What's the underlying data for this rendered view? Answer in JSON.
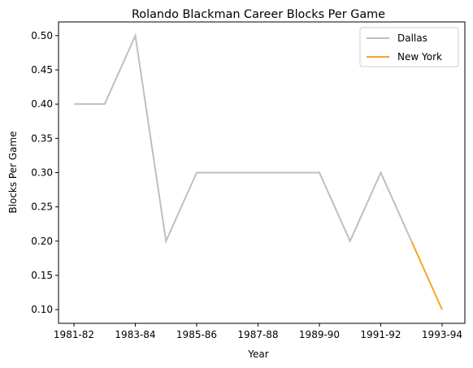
{
  "chart_data": {
    "type": "line",
    "title": "Rolando Blackman Career Blocks Per Game",
    "xlabel": "Year",
    "ylabel": "Blocks Per Game",
    "x": [
      "1981-82",
      "1982-83",
      "1983-84",
      "1984-85",
      "1985-86",
      "1986-87",
      "1987-88",
      "1988-89",
      "1989-90",
      "1990-91",
      "1991-92",
      "1992-93",
      "1993-94"
    ],
    "x_tick_labels": [
      "1981-82",
      "1983-84",
      "1985-86",
      "1987-88",
      "1989-90",
      "1991-92",
      "1993-94"
    ],
    "ylim": [
      0.08,
      0.52
    ],
    "y_ticks": [
      0.1,
      0.15,
      0.2,
      0.25,
      0.3,
      0.35,
      0.4,
      0.45,
      0.5
    ],
    "grid": false,
    "legend_position": "top-right",
    "series": [
      {
        "name": "Dallas",
        "color": "#bfbfbf",
        "x": [
          "1981-82",
          "1982-83",
          "1983-84",
          "1984-85",
          "1985-86",
          "1986-87",
          "1987-88",
          "1988-89",
          "1989-90",
          "1990-91",
          "1991-92",
          "1992-93"
        ],
        "values": [
          0.4,
          0.4,
          0.5,
          0.2,
          0.3,
          0.3,
          0.3,
          0.3,
          0.3,
          0.2,
          0.3,
          0.2
        ]
      },
      {
        "name": "New York",
        "color": "#f5a623",
        "x": [
          "1992-93",
          "1993-94"
        ],
        "values": [
          0.2,
          0.1
        ]
      }
    ]
  }
}
